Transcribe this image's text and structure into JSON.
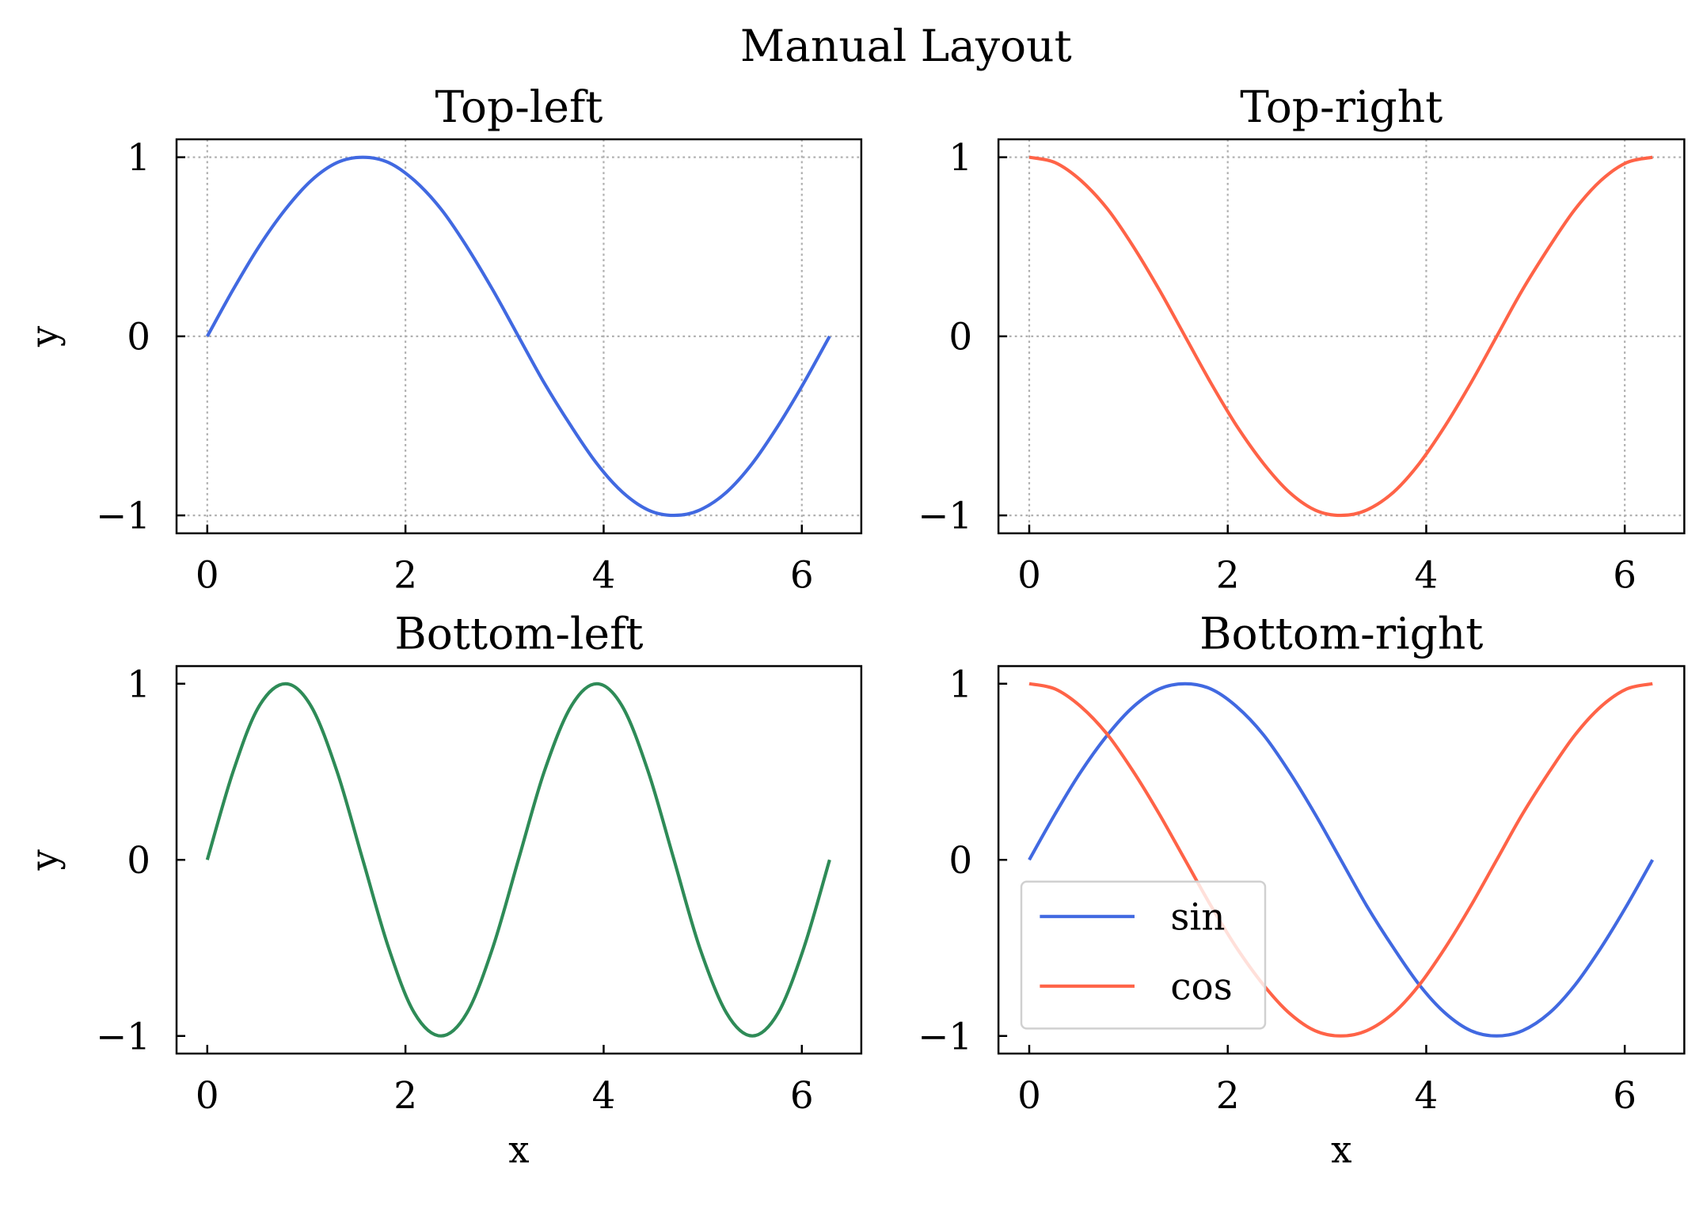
{
  "chart_data": {
    "title": "Manual Layout",
    "colors": {
      "sin": "#4169E1",
      "cos": "#FF6347",
      "sin2x": "#2E8B57"
    },
    "x": [
      0,
      0.26,
      0.52,
      0.79,
      1.05,
      1.31,
      1.57,
      1.83,
      2.09,
      2.36,
      2.62,
      2.88,
      3.14,
      3.4,
      3.67,
      3.93,
      4.19,
      4.45,
      4.71,
      4.97,
      5.24,
      5.5,
      5.76,
      6.02,
      6.28
    ],
    "panels": [
      {
        "type": "line",
        "title": "Top-left",
        "xlabel": "",
        "ylabel": "y",
        "xlim": [
          -0.31,
          6.6
        ],
        "ylim": [
          -1.1,
          1.1
        ],
        "grid": true,
        "xticks": [
          "0",
          "2",
          "4",
          "6"
        ],
        "yticks": [
          "−1",
          "0",
          "1"
        ],
        "series": [
          {
            "color": "#4169E1",
            "values": [
              0,
              0.26,
              0.5,
              0.71,
              0.87,
              0.97,
              1,
              0.97,
              0.87,
              0.71,
              0.5,
              0.26,
              0,
              -0.26,
              -0.5,
              -0.71,
              -0.87,
              -0.97,
              -1,
              -0.97,
              -0.87,
              -0.71,
              -0.5,
              -0.26,
              0
            ]
          }
        ]
      },
      {
        "type": "line",
        "title": "Top-right",
        "xlabel": "",
        "ylabel": "",
        "xlim": [
          -0.31,
          6.6
        ],
        "ylim": [
          -1.1,
          1.1
        ],
        "grid": true,
        "xticks": [
          "0",
          "2",
          "4",
          "6"
        ],
        "yticks": [
          "−1",
          "0",
          "1"
        ],
        "series": [
          {
            "color": "#FF6347",
            "values": [
              1,
              0.97,
              0.87,
              0.71,
              0.5,
              0.26,
              0,
              -0.26,
              -0.5,
              -0.71,
              -0.87,
              -0.97,
              -1,
              -0.97,
              -0.87,
              -0.71,
              -0.5,
              -0.26,
              0,
              0.26,
              0.5,
              0.71,
              0.87,
              0.97,
              1
            ]
          }
        ]
      },
      {
        "type": "line",
        "title": "Bottom-left",
        "xlabel": "x",
        "ylabel": "y",
        "xlim": [
          -0.31,
          6.6
        ],
        "ylim": [
          -1.1,
          1.1
        ],
        "grid": false,
        "xticks": [
          "0",
          "2",
          "4",
          "6"
        ],
        "yticks": [
          "−1",
          "0",
          "1"
        ],
        "series": [
          {
            "color": "#2E8B57",
            "values": [
              0,
              0.5,
              0.87,
              1,
              0.87,
              0.5,
              0,
              -0.5,
              -0.87,
              -1,
              -0.87,
              -0.5,
              0,
              0.5,
              0.87,
              1,
              0.87,
              0.5,
              0,
              -0.5,
              -0.87,
              -1,
              -0.87,
              -0.5,
              0
            ]
          }
        ]
      },
      {
        "type": "line",
        "title": "Bottom-right",
        "xlabel": "x",
        "ylabel": "",
        "xlim": [
          -0.31,
          6.6
        ],
        "ylim": [
          -1.1,
          1.1
        ],
        "grid": false,
        "xticks": [
          "0",
          "2",
          "4",
          "6"
        ],
        "yticks": [
          "−1",
          "0",
          "1"
        ],
        "legend": "lower-left",
        "series": [
          {
            "name": "sin",
            "color": "#4169E1",
            "values": [
              0,
              0.26,
              0.5,
              0.71,
              0.87,
              0.97,
              1,
              0.97,
              0.87,
              0.71,
              0.5,
              0.26,
              0,
              -0.26,
              -0.5,
              -0.71,
              -0.87,
              -0.97,
              -1,
              -0.97,
              -0.87,
              -0.71,
              -0.5,
              -0.26,
              0
            ]
          },
          {
            "name": "cos",
            "color": "#FF6347",
            "values": [
              1,
              0.97,
              0.87,
              0.71,
              0.5,
              0.26,
              0,
              -0.26,
              -0.5,
              -0.71,
              -0.87,
              -0.97,
              -1,
              -0.97,
              -0.87,
              -0.71,
              -0.5,
              -0.26,
              0,
              0.26,
              0.5,
              0.71,
              0.87,
              0.97,
              1
            ]
          }
        ]
      }
    ]
  }
}
